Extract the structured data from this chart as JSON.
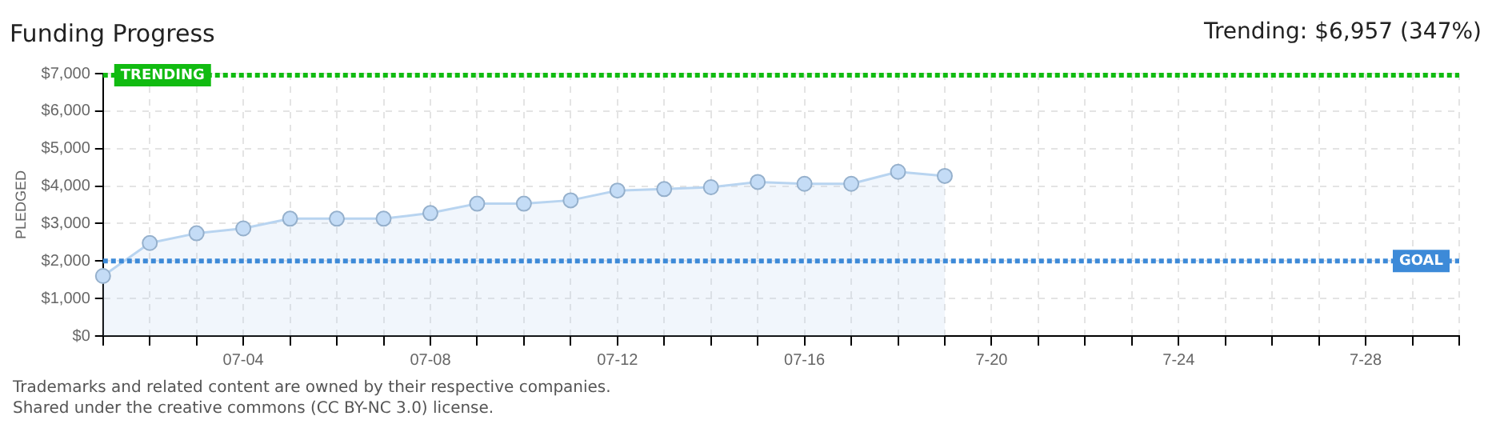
{
  "chart_data": {
    "type": "area",
    "title": "Funding Progress",
    "ylabel": "PLEDGED",
    "annotations": [
      "Trending: $6,957 (347%)",
      "Trademarks and related content are owned by their respective companies.",
      "Shared under the creative commons (CC BY-NC 3.0) license."
    ],
    "categories": [
      null,
      null,
      null,
      "07-04",
      null,
      null,
      null,
      "07-08",
      null,
      null,
      null,
      "07-12",
      null,
      null,
      null,
      "07-16",
      null,
      null,
      null,
      "7-20",
      null,
      null,
      null,
      "7-24",
      null,
      null,
      null,
      "7-28",
      null,
      null
    ],
    "series": [
      {
        "color": "#b8d4f0",
        "values": [
          1600,
          2480,
          2740,
          2870,
          3130,
          3130,
          3130,
          3280,
          3530,
          3530,
          3620,
          3880,
          3920,
          3970,
          4110,
          4060,
          4060,
          4380,
          4270,
          null,
          null,
          null,
          null,
          null,
          null,
          null,
          null,
          null,
          null,
          null
        ]
      }
    ],
    "ylim": [
      0,
      7000
    ],
    "yticks": [
      {
        "value": 0,
        "label": "$0"
      },
      {
        "value": 1000,
        "label": "$1,000"
      },
      {
        "value": 2000,
        "label": "$2,000"
      },
      {
        "value": 3000,
        "label": "$3,000"
      },
      {
        "value": 4000,
        "label": "$4,000"
      },
      {
        "value": 5000,
        "label": "$5,000"
      },
      {
        "value": 6000,
        "label": "$6,000"
      },
      {
        "value": 7000,
        "label": "$7,000"
      }
    ],
    "ref_lines": [
      {
        "axis": "y",
        "value": 6957,
        "label": "TRENDING",
        "color": "#11bb11",
        "line_style": "dotted"
      },
      {
        "axis": "y",
        "value": 2000,
        "label": "GOAL",
        "color": "#3d8ad8",
        "line_style": "dotted"
      }
    ],
    "grid": true,
    "marker": "circle",
    "legend": false
  }
}
